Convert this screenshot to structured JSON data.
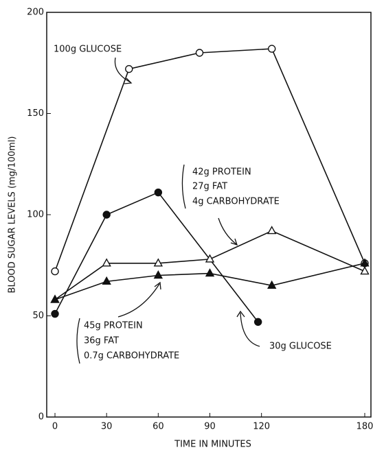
{
  "chart_data": {
    "type": "line",
    "xlabel": "TIME IN MINUTES",
    "ylabel": "BLOOD SUGAR LEVELS (mg/100ml)",
    "xlim": [
      -4.8,
      183.6
    ],
    "xticks": [
      0,
      30,
      60,
      90,
      120,
      180
    ],
    "ylim": [
      0,
      200
    ],
    "yticks": [
      0,
      50,
      100,
      150,
      200
    ],
    "series": [
      {
        "name": "100g GLUCOSE",
        "color": "#111111",
        "marker": "circle",
        "filled": false,
        "x": [
          0,
          43,
          84,
          126,
          180
        ],
        "values": [
          72,
          172,
          180,
          182,
          76
        ]
      },
      {
        "name": "30g GLUCOSE",
        "color": "#111111",
        "marker": "circle",
        "filled": true,
        "x": [
          0,
          30,
          60,
          118
        ],
        "values": [
          51,
          100,
          111,
          47
        ]
      },
      {
        "label": [
          "42g PROTEIN",
          "27g FAT",
          "4g CARBOHYDRATE"
        ],
        "color": "#111111",
        "marker": "triangle",
        "filled": false,
        "x": [
          0,
          30,
          60,
          90,
          126,
          180
        ],
        "values": [
          58,
          76,
          76,
          78,
          92,
          72
        ]
      },
      {
        "label": [
          "45g PROTEIN",
          "36g FAT",
          "0.7g CARBOHYDRATE"
        ],
        "color": "#111111",
        "marker": "triangle",
        "filled": true,
        "x": [
          0,
          30,
          60,
          90,
          126,
          180
        ],
        "values": [
          58,
          67,
          70,
          71,
          65,
          76
        ]
      }
    ]
  }
}
